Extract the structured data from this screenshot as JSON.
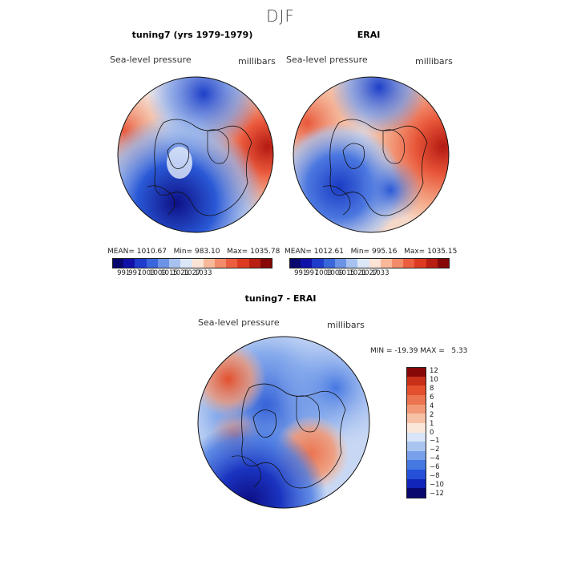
{
  "title": "DJF",
  "panels": [
    {
      "title": "tuning7 (yrs 1979-1979)",
      "field": "Sea-level pressure",
      "units": "millibars",
      "mean": "1010.67",
      "min": "983.10",
      "max": "1035.78",
      "mean_label": "MEAN=",
      "min_label": "Min=",
      "max_label": "Max="
    },
    {
      "title": "ERAI",
      "field": "Sea-level pressure",
      "units": "millibars",
      "mean": "1012.61",
      "min": "995.16",
      "max": "1035.15",
      "mean_label": "MEAN=",
      "min_label": "Min=",
      "max_label": "Max="
    },
    {
      "title": "tuning7 - ERAI",
      "field": "Sea-level pressure",
      "units": "millibars",
      "minmax_text": "MIN = -19.39 MAX =   5.33"
    }
  ],
  "colorbar_abs": {
    "colors": [
      "#08086e",
      "#1111aa",
      "#1f3ccc",
      "#3a66dc",
      "#6d93e6",
      "#a8c2ef",
      "#dbe6f7",
      "#fbe3d6",
      "#f7b99a",
      "#f28c6a",
      "#ec5e3f",
      "#dd3a22",
      "#b81e12",
      "#880808"
    ],
    "tick_labels": [
      "991",
      "997",
      "1003",
      "1009",
      "1015",
      "1021",
      "1027",
      "1033"
    ]
  },
  "colorbar_diff": {
    "colors": [
      "#08086e",
      "#1126b8",
      "#2550d8",
      "#4678e2",
      "#78a0ea",
      "#a9c4f0",
      "#d8e4f7",
      "#fbe6da",
      "#f7c1a6",
      "#f29a77",
      "#ec7450",
      "#e2502d",
      "#c8301a",
      "#880808"
    ],
    "tick_labels": [
      "12",
      "10",
      "8",
      "6",
      "4",
      "2",
      "1",
      "0",
      "−1",
      "−2",
      "−4",
      "−6",
      "−8",
      "−10",
      "−12"
    ]
  },
  "map_colors": {
    "deep_low": "#0d0f86",
    "low": "#2a59d6",
    "mid_low": "#8fb0ec",
    "neutral": "#f3ece9",
    "mid_high": "#f4a886",
    "high": "#e9573a",
    "deep_high": "#b41a12",
    "coast": "#111111"
  }
}
